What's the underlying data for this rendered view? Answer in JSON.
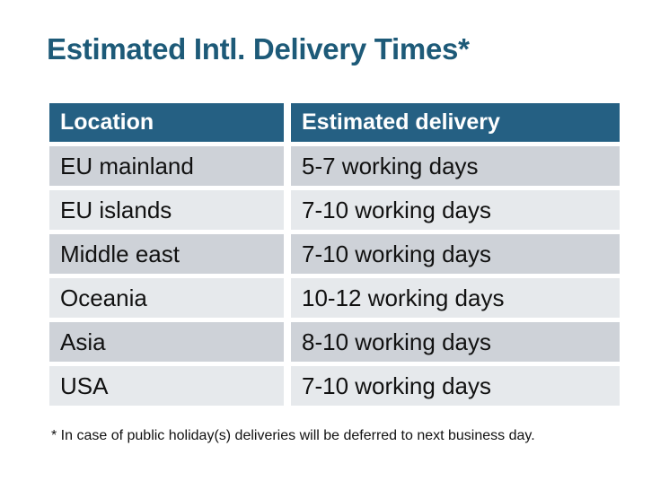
{
  "title": "Estimated Intl. Delivery Times*",
  "table": {
    "headers": [
      "Location",
      "Estimated delivery"
    ],
    "rows": [
      {
        "location": "EU mainland",
        "delivery": "5-7 working days"
      },
      {
        "location": "EU islands",
        "delivery": "7-10 working days"
      },
      {
        "location": "Middle east",
        "delivery": "7-10 working days"
      },
      {
        "location": "Oceania",
        "delivery": "10-12 working days"
      },
      {
        "location": "Asia",
        "delivery": "8-10 working days"
      },
      {
        "location": "USA",
        "delivery": "7-10 working days"
      }
    ]
  },
  "footnote": "* In case of public holiday(s) deliveries will be deferred to next business day.",
  "colors": {
    "title_color": "#1d5a78",
    "header_bg": "#256083",
    "header_text": "#ffffff",
    "row_odd_bg": "#ced2d8",
    "row_even_bg": "#e6e9ec"
  }
}
